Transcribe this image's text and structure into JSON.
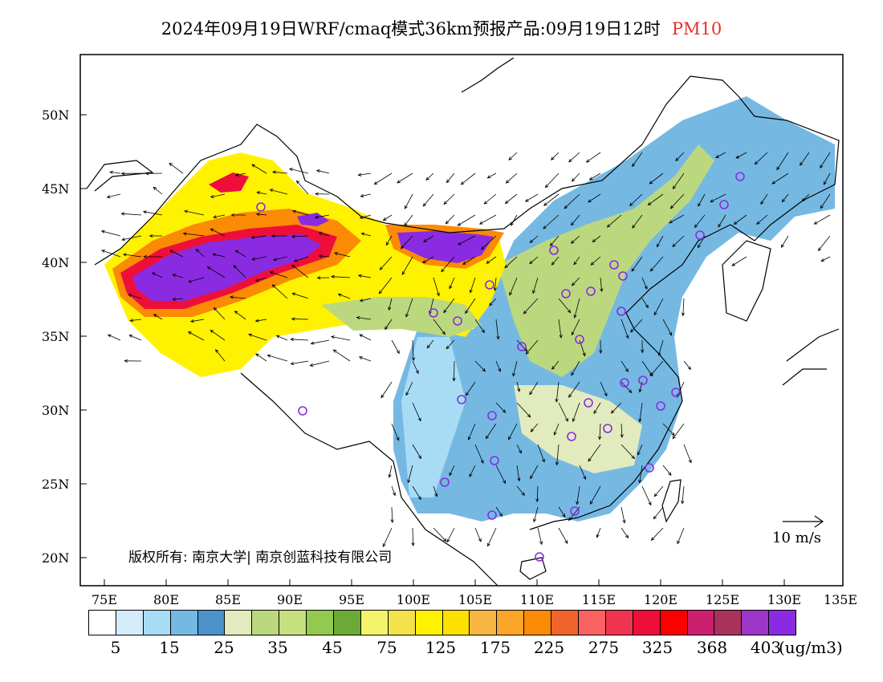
{
  "title": {
    "main": "2024年09月19日WRF/cmaq模式36km预报产品:09月19日12时",
    "variable": "PM10"
  },
  "y_ticks": [
    "50N",
    "45N",
    "40N",
    "35N",
    "30N",
    "25N",
    "20N"
  ],
  "x_ticks": [
    "75E",
    "80E",
    "85E",
    "90E",
    "95E",
    "100E",
    "105E",
    "110E",
    "115E",
    "120E",
    "125E",
    "130E",
    "135E"
  ],
  "copyright": "版权所有: 南京大学| 南京创蓝科技有限公司",
  "wind_scale": {
    "label": "10 m/s"
  },
  "colorbar": {
    "labels": [
      "5",
      "15",
      "25",
      "35",
      "45",
      "75",
      "125",
      "175",
      "225",
      "275",
      "325",
      "368",
      "403"
    ],
    "units": "(ug/m3)",
    "colors": [
      "#ffffff",
      "#d5ecfa",
      "#a8dcf5",
      "#75b9e3",
      "#4c91c9",
      "#e2ebbe",
      "#bcd87f",
      "#c6e07e",
      "#93c94f",
      "#6aaa35",
      "#f4f46b",
      "#f3e24a",
      "#fff200",
      "#fbe000",
      "#f7b642",
      "#fba52a",
      "#fb8a05",
      "#f0642b",
      "#fa6262",
      "#f0334f",
      "#ed0f3a",
      "#fb0000",
      "#cc1f6e",
      "#a8325b",
      "#9c36c8",
      "#8a2be2"
    ]
  },
  "map_colors": {
    "land": "#ffffff",
    "very_high": "#8a2be2",
    "high": "#ed0f3a",
    "mid_high": "#fb8a05",
    "mid": "#fff200",
    "low_green": "#bcd87f",
    "light_green": "#e2ebbe",
    "blue_low": "#75b9e3",
    "light_blue": "#a8dcf5",
    "station": "#8a2be2"
  }
}
